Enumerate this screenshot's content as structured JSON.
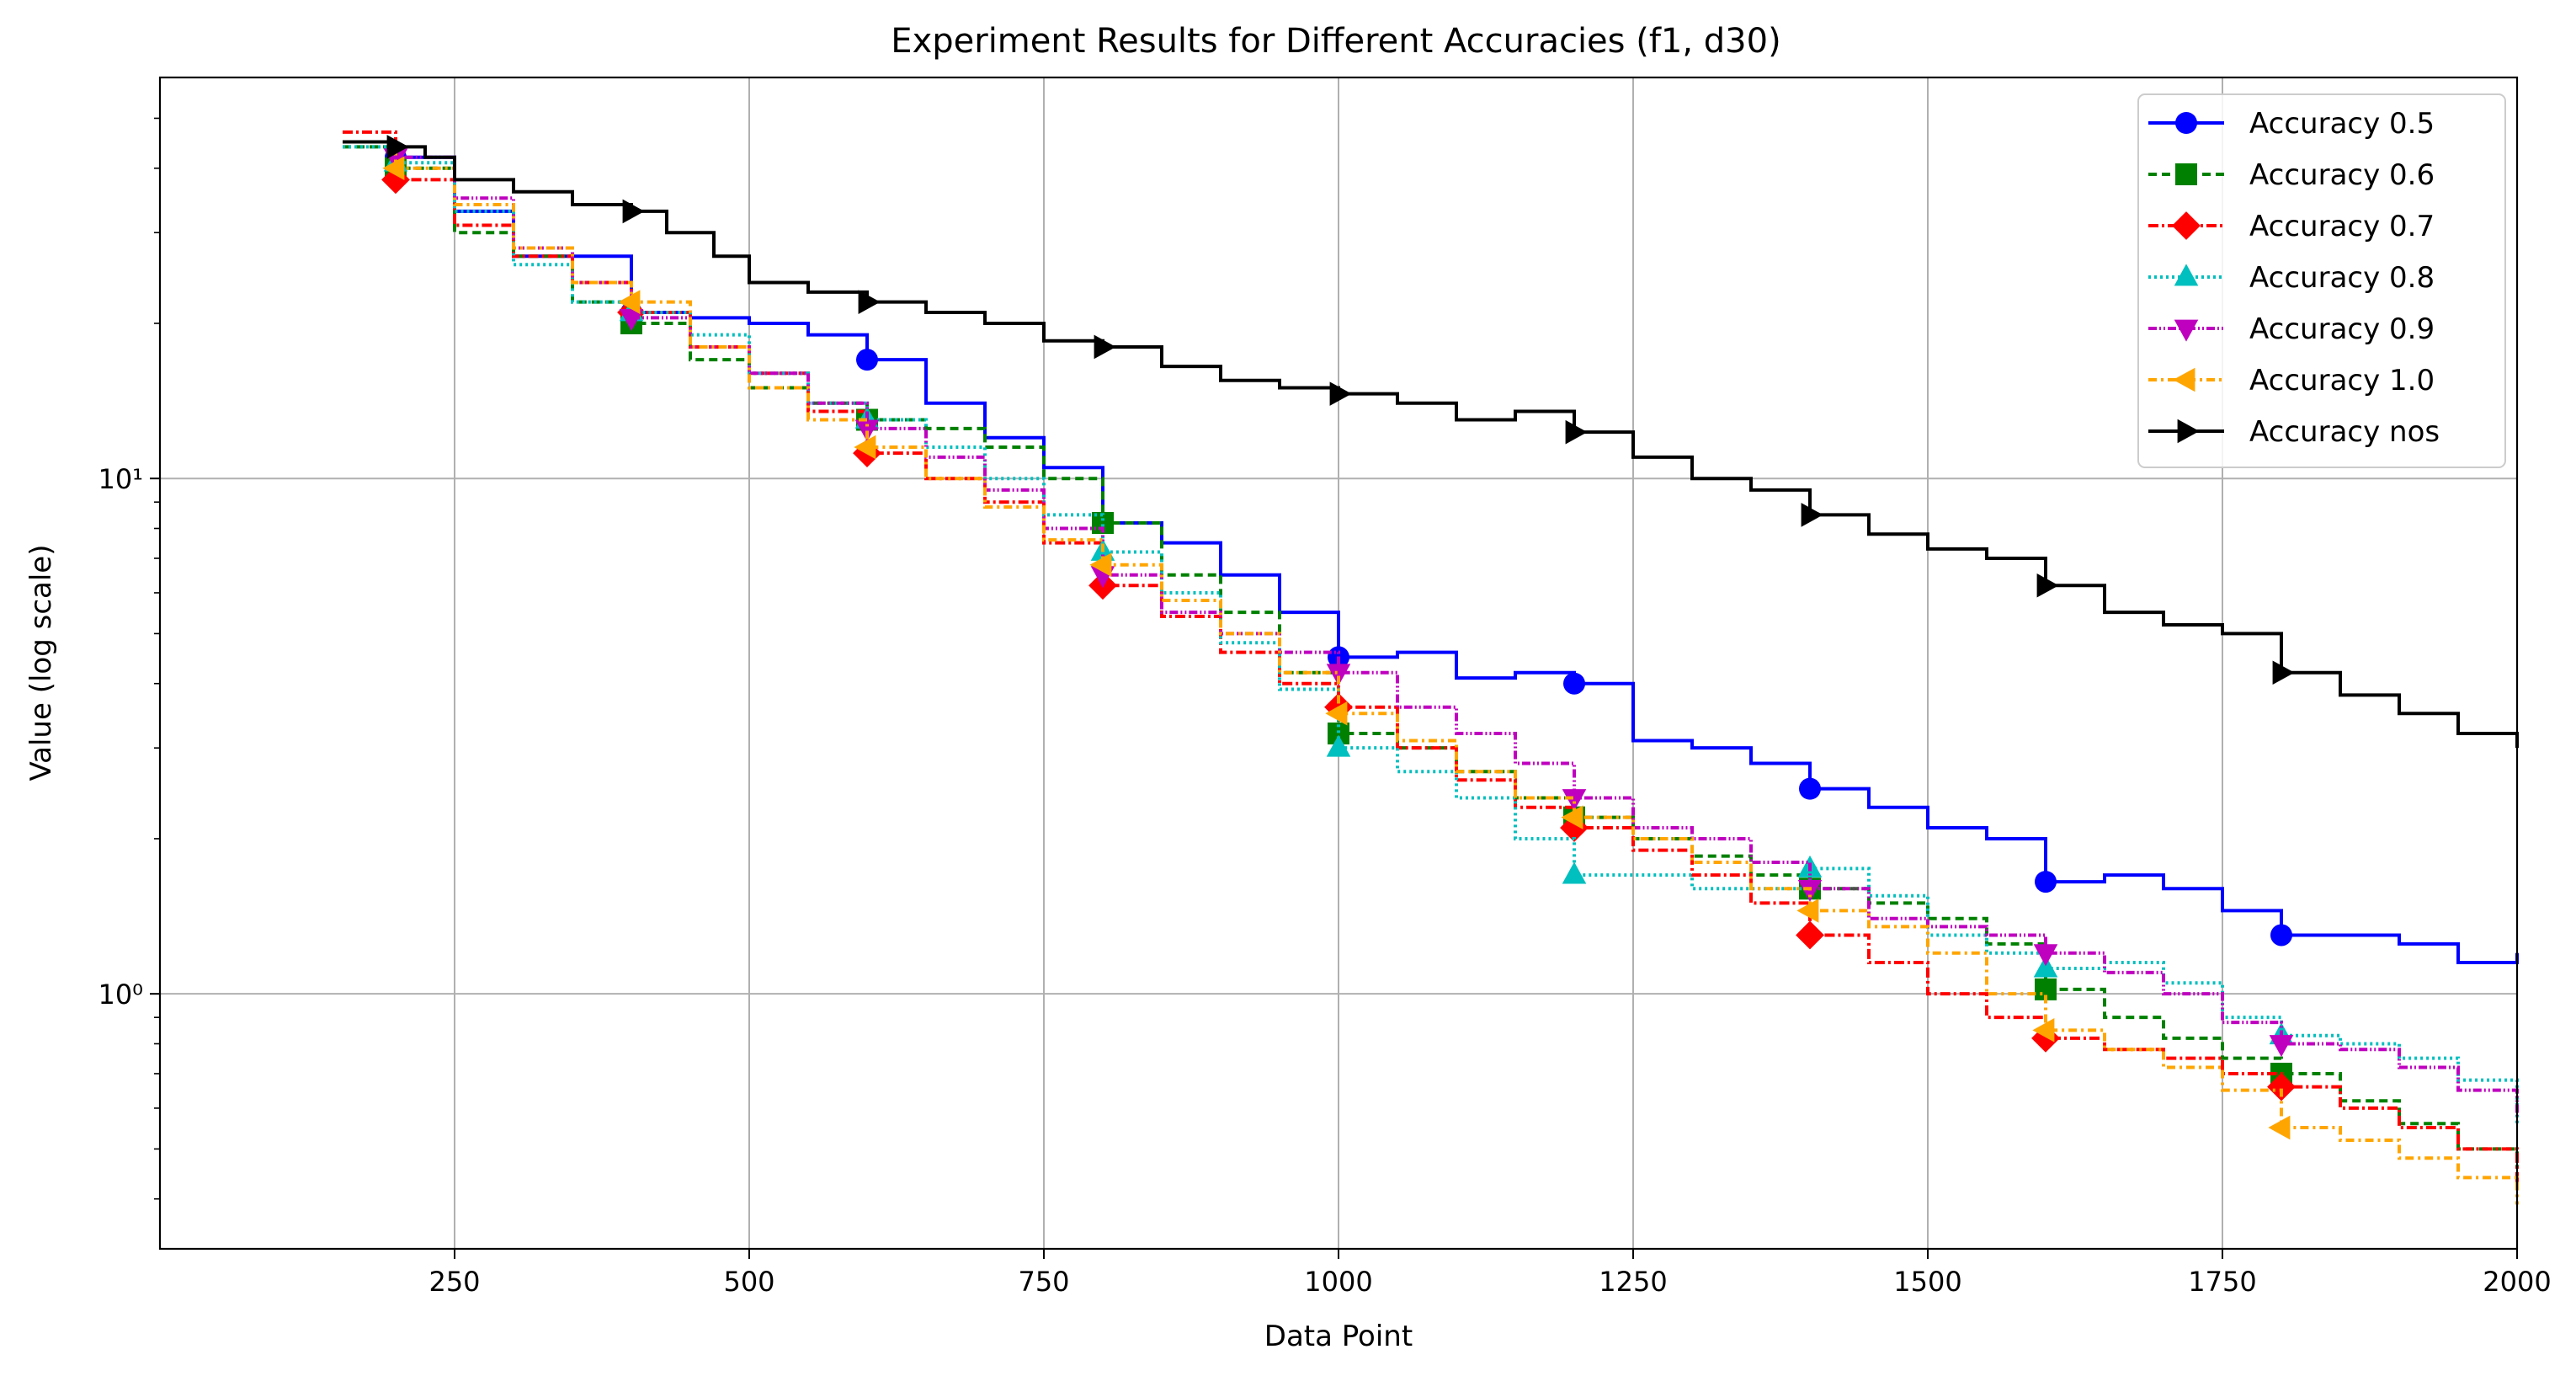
{
  "chart_data": {
    "type": "line",
    "title": "Experiment Results for Different Accuracies (f1, d30)",
    "xlabel": "Data Point",
    "ylabel": "Value (log scale)",
    "xlim": [
      0,
      2000
    ],
    "ylim": [
      0.32,
      60
    ],
    "yscale": "log",
    "grid": true,
    "legend_position": "top-right",
    "x_ticks": [
      250,
      500,
      750,
      1000,
      1250,
      1500,
      1750,
      2000
    ],
    "x_tick_labels": [
      "250",
      "500",
      "750",
      "1000",
      "1250",
      "1500",
      "1750",
      "2000"
    ],
    "y_major_ticks": [
      1,
      10
    ],
    "y_tick_labels": [
      "10⁰",
      "10¹"
    ],
    "series": [
      {
        "name": "Accuracy 0.5",
        "color": "#0000ff",
        "dash": "",
        "marker": "circle",
        "x": [
          155,
          200,
          250,
          300,
          400,
          450,
          500,
          550,
          600,
          650,
          700,
          750,
          800,
          850,
          900,
          950,
          1000,
          1050,
          1100,
          1150,
          1200,
          1250,
          1300,
          1350,
          1400,
          1450,
          1500,
          1550,
          1600,
          1650,
          1700,
          1750,
          1800,
          1850,
          1900,
          1950,
          2000
        ],
        "y": [
          45,
          42,
          33,
          27,
          21,
          20.5,
          20,
          19,
          17,
          14,
          12,
          10.5,
          8.2,
          7.5,
          6.5,
          5.5,
          4.5,
          4.6,
          4.1,
          4.2,
          4.0,
          3.1,
          3.0,
          2.8,
          2.5,
          2.3,
          2.1,
          2.0,
          1.65,
          1.7,
          1.6,
          1.45,
          1.3,
          1.3,
          1.25,
          1.15,
          1.2
        ],
        "marker_x": [
          200,
          400,
          600,
          800,
          1000,
          1200,
          1400,
          1600,
          1800
        ]
      },
      {
        "name": "Accuracy 0.6",
        "color": "#008000",
        "dash": "10,6",
        "marker": "square",
        "x": [
          155,
          200,
          250,
          300,
          350,
          400,
          450,
          500,
          550,
          600,
          650,
          700,
          750,
          800,
          850,
          900,
          950,
          1000,
          1050,
          1100,
          1150,
          1200,
          1250,
          1300,
          1350,
          1400,
          1450,
          1500,
          1550,
          1600,
          1650,
          1700,
          1750,
          1800,
          1850,
          1900,
          1950,
          2000
        ],
        "y": [
          44,
          40,
          30,
          27,
          22,
          20,
          17,
          15,
          14,
          13,
          12.5,
          11.5,
          10,
          8.2,
          6.5,
          5.5,
          4.2,
          3.2,
          3.0,
          2.7,
          2.4,
          2.2,
          2.0,
          1.85,
          1.7,
          1.6,
          1.5,
          1.4,
          1.25,
          1.02,
          0.9,
          0.82,
          0.75,
          0.7,
          0.62,
          0.56,
          0.5,
          0.46
        ],
        "marker_x": [
          200,
          400,
          600,
          800,
          1000,
          1200,
          1400,
          1600,
          1800
        ]
      },
      {
        "name": "Accuracy 0.7",
        "color": "#ff0000",
        "dash": "12,4,3,4",
        "marker": "diamond",
        "x": [
          155,
          200,
          250,
          300,
          350,
          400,
          450,
          500,
          550,
          600,
          650,
          700,
          750,
          800,
          850,
          900,
          950,
          1000,
          1050,
          1100,
          1150,
          1200,
          1250,
          1300,
          1350,
          1400,
          1450,
          1500,
          1550,
          1600,
          1650,
          1700,
          1750,
          1800,
          1850,
          1900,
          1950,
          2000
        ],
        "y": [
          47,
          38,
          31,
          27,
          24,
          21,
          18,
          16,
          13.5,
          11.2,
          10,
          9,
          7.5,
          6.2,
          5.4,
          4.6,
          4.0,
          3.6,
          3.0,
          2.6,
          2.3,
          2.1,
          1.9,
          1.7,
          1.5,
          1.3,
          1.15,
          1.0,
          0.9,
          0.82,
          0.78,
          0.75,
          0.7,
          0.66,
          0.6,
          0.55,
          0.5,
          0.43
        ],
        "marker_x": [
          200,
          400,
          600,
          800,
          1000,
          1200,
          1400,
          1600,
          1800
        ]
      },
      {
        "name": "Accuracy 0.8",
        "color": "#00bfbf",
        "dash": "3,4",
        "marker": "triangle-up",
        "x": [
          155,
          200,
          250,
          300,
          350,
          400,
          450,
          500,
          550,
          600,
          650,
          700,
          750,
          800,
          850,
          900,
          950,
          1000,
          1050,
          1100,
          1150,
          1200,
          1250,
          1300,
          1350,
          1400,
          1450,
          1500,
          1550,
          1600,
          1650,
          1700,
          1750,
          1800,
          1850,
          1900,
          1950,
          2000
        ],
        "y": [
          44,
          41,
          33,
          26,
          22,
          21,
          19,
          16,
          14,
          13,
          11.5,
          10,
          8.5,
          7.2,
          6.0,
          4.8,
          3.9,
          3.0,
          2.7,
          2.4,
          2.0,
          1.7,
          1.7,
          1.6,
          1.6,
          1.75,
          1.55,
          1.3,
          1.2,
          1.12,
          1.15,
          1.05,
          0.9,
          0.83,
          0.8,
          0.75,
          0.68,
          0.56
        ],
        "marker_x": [
          200,
          400,
          600,
          800,
          1000,
          1200,
          1400,
          1600,
          1800
        ]
      },
      {
        "name": "Accuracy 0.9",
        "color": "#bf00bf",
        "dash": "10,3,2,3,2,3",
        "marker": "triangle-down",
        "x": [
          155,
          200,
          250,
          300,
          350,
          400,
          450,
          500,
          550,
          600,
          650,
          700,
          750,
          800,
          850,
          900,
          950,
          1000,
          1050,
          1100,
          1150,
          1200,
          1250,
          1300,
          1350,
          1400,
          1450,
          1500,
          1550,
          1600,
          1650,
          1700,
          1750,
          1800,
          1850,
          1900,
          1950,
          2000
        ],
        "y": [
          45,
          42,
          35,
          28,
          24,
          20.5,
          18,
          16,
          14,
          12.5,
          11,
          9.5,
          8,
          6.5,
          5.5,
          5.0,
          4.6,
          4.2,
          3.6,
          3.2,
          2.8,
          2.4,
          2.1,
          2.0,
          1.8,
          1.6,
          1.4,
          1.35,
          1.3,
          1.2,
          1.1,
          1.0,
          0.88,
          0.8,
          0.78,
          0.72,
          0.65,
          0.58
        ],
        "marker_x": [
          200,
          400,
          600,
          800,
          1000,
          1200,
          1400,
          1600,
          1800
        ]
      },
      {
        "name": "Accuracy 1.0",
        "color": "#ffa500",
        "dash": "10,5,3,5",
        "marker": "triangle-left",
        "x": [
          155,
          200,
          250,
          300,
          350,
          400,
          450,
          500,
          550,
          600,
          650,
          700,
          750,
          800,
          850,
          900,
          950,
          1000,
          1050,
          1100,
          1150,
          1200,
          1250,
          1300,
          1350,
          1400,
          1450,
          1500,
          1550,
          1600,
          1650,
          1700,
          1750,
          1800,
          1850,
          1900,
          1950,
          2000
        ],
        "y": [
          45,
          40,
          34,
          28,
          24,
          22,
          18,
          15,
          13,
          11.5,
          10,
          8.8,
          7.6,
          6.8,
          5.8,
          5.0,
          4.2,
          3.5,
          3.1,
          2.7,
          2.4,
          2.2,
          2.0,
          1.8,
          1.6,
          1.45,
          1.35,
          1.2,
          1.0,
          0.85,
          0.78,
          0.72,
          0.65,
          0.55,
          0.52,
          0.48,
          0.44,
          0.39
        ],
        "marker_x": [
          200,
          400,
          600,
          800,
          1000,
          1200,
          1400,
          1600,
          1800
        ]
      },
      {
        "name": "Accuracy nos",
        "color": "#000000",
        "dash": "",
        "marker": "triangle-right",
        "x": [
          155,
          200,
          225,
          250,
          300,
          350,
          400,
          430,
          470,
          500,
          550,
          600,
          650,
          700,
          750,
          800,
          850,
          900,
          950,
          1000,
          1050,
          1100,
          1150,
          1200,
          1250,
          1300,
          1350,
          1400,
          1450,
          1500,
          1550,
          1600,
          1650,
          1700,
          1750,
          1800,
          1850,
          1900,
          1950,
          2000
        ],
        "y": [
          45,
          44,
          42,
          38,
          36,
          34,
          33,
          30,
          27,
          24,
          23,
          22,
          21,
          20,
          18.5,
          18,
          16.5,
          15.5,
          15,
          14.6,
          14,
          13,
          13.5,
          12.3,
          11,
          10,
          9.5,
          8.5,
          7.8,
          7.3,
          7.0,
          6.2,
          5.5,
          5.2,
          5.0,
          4.2,
          3.8,
          3.5,
          3.2,
          3.0
        ],
        "marker_x": [
          200,
          400,
          600,
          800,
          1000,
          1200,
          1400,
          1600,
          1800
        ]
      }
    ]
  }
}
